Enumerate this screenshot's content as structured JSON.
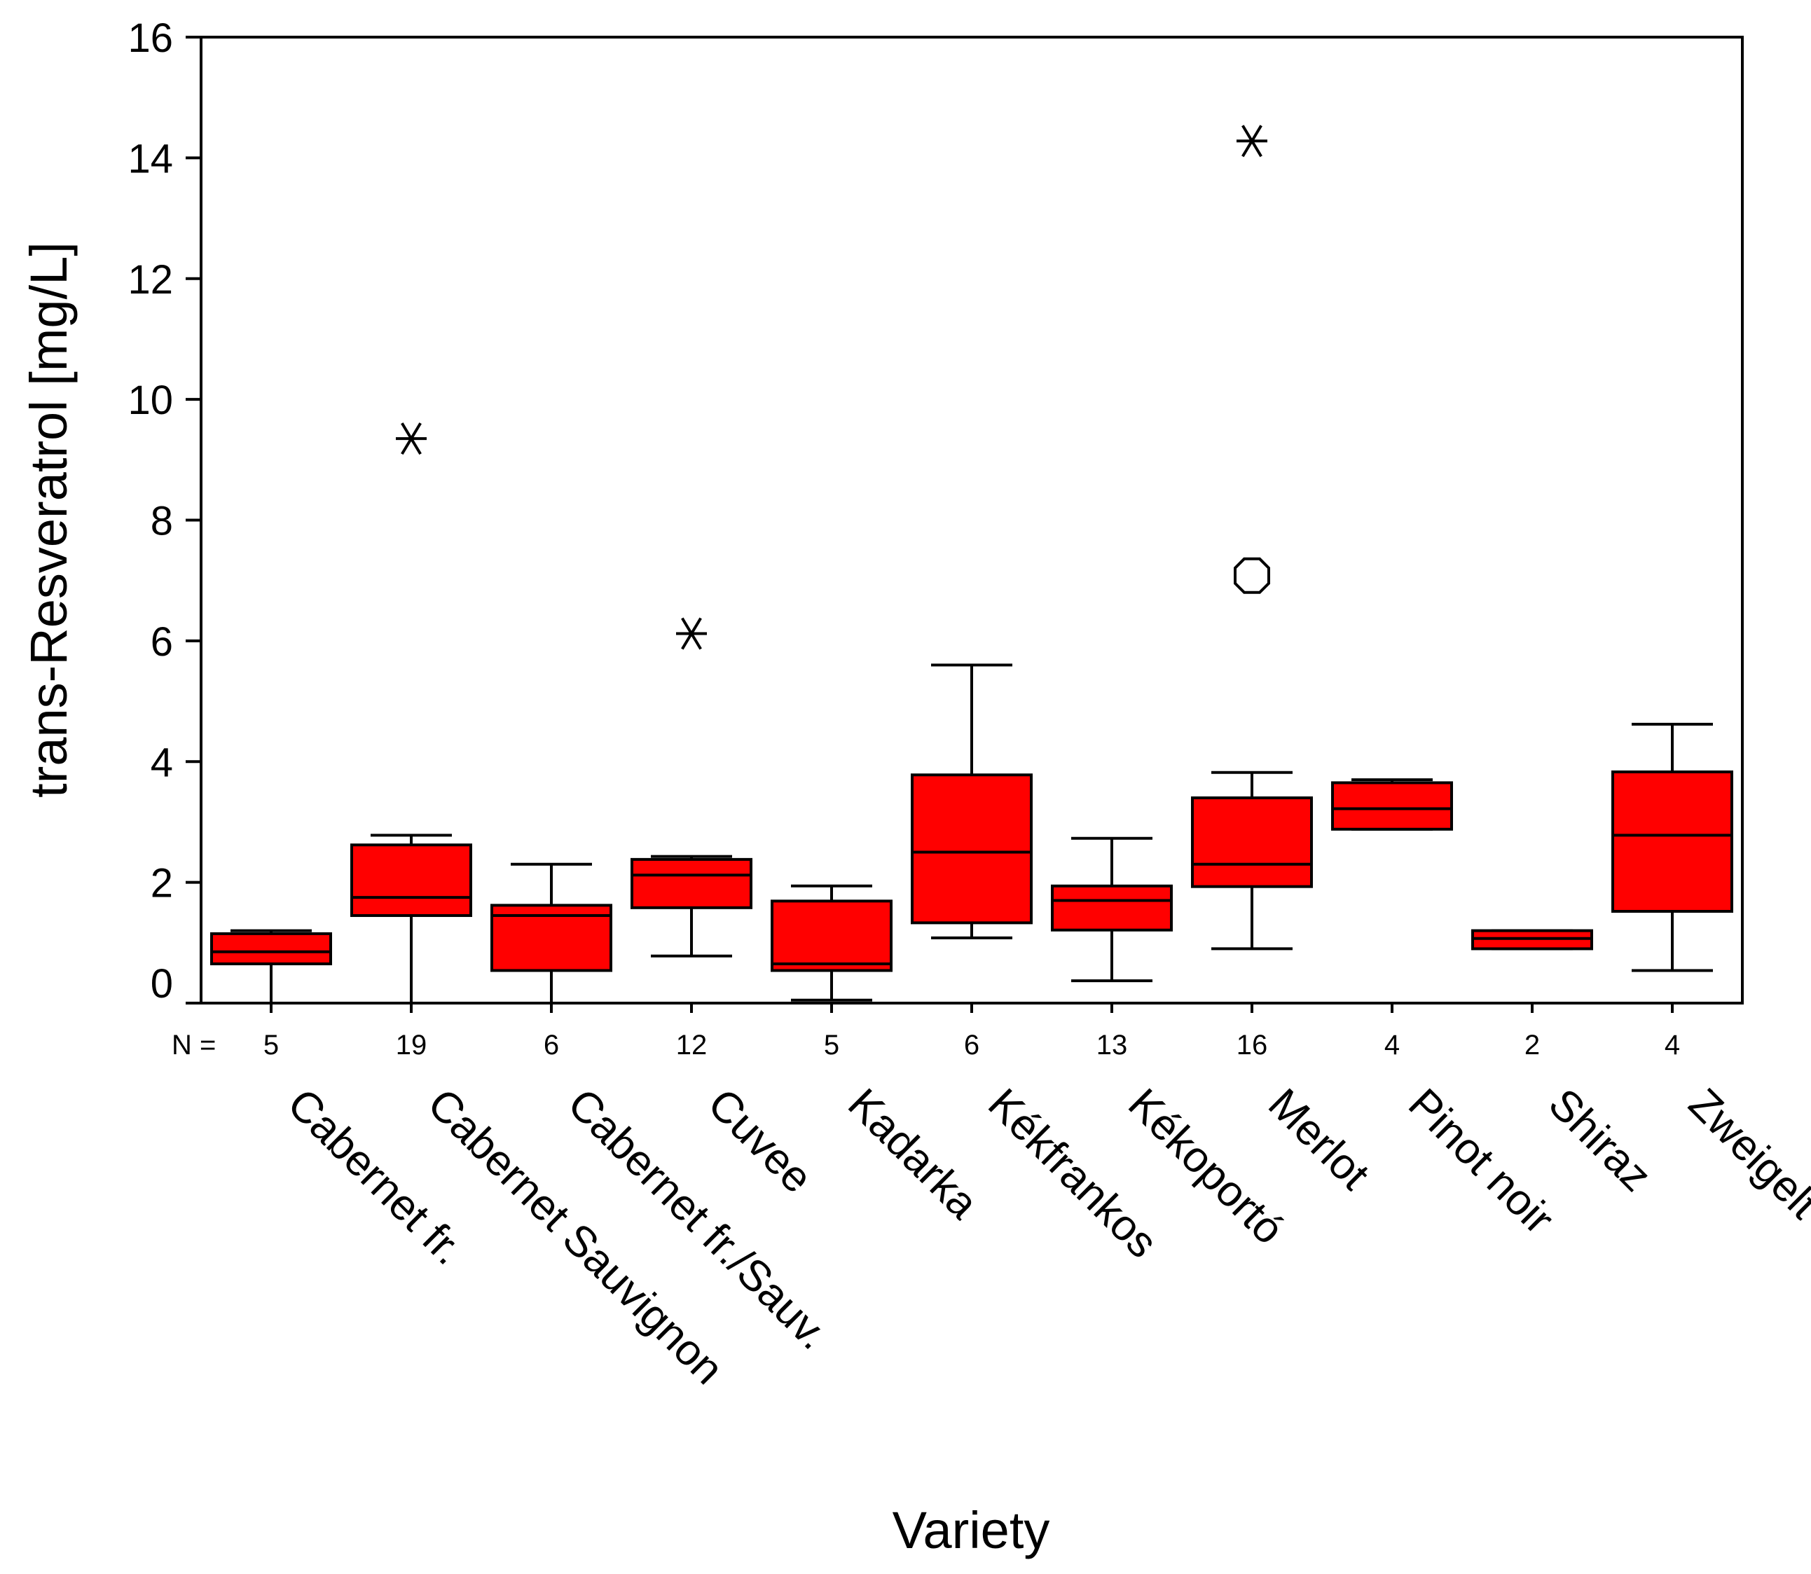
{
  "chart_data": {
    "type": "boxplot",
    "title": "",
    "xlabel": "Variety",
    "ylabel": "trans-Resveratrol [mg/L]",
    "ylim": [
      0,
      16
    ],
    "yticks": [
      0,
      2,
      4,
      6,
      8,
      10,
      12,
      14,
      16
    ],
    "yticklabels": [
      "0",
      "2",
      "4",
      "6",
      "8",
      "10",
      "12",
      "14",
      "16"
    ],
    "n_label": "N =",
    "box_color": "#ff0000",
    "grid": false,
    "legend": "none",
    "categories": [
      "Cabernet fr.",
      "Cabernet Sauvignon",
      "Cabernet fr./Sauv.",
      "Cuvee",
      "Kadarka",
      "Kékfrankos",
      "Kékoportó",
      "Merlot",
      "Pinot noir",
      "Shiraz",
      "Zweigelt"
    ],
    "n": [
      5,
      19,
      6,
      12,
      5,
      6,
      13,
      16,
      4,
      2,
      4
    ],
    "n_labels": [
      "5",
      "19",
      "6",
      "12",
      "5",
      "6",
      "13",
      "16",
      "4",
      "2",
      "4"
    ],
    "whisker_low": [
      0.0,
      0.0,
      0.0,
      0.78,
      0.05,
      1.08,
      0.37,
      0.9,
      2.88,
      0.9,
      0.54
    ],
    "q1": [
      0.65,
      1.45,
      0.54,
      1.58,
      0.54,
      1.33,
      1.21,
      1.93,
      2.88,
      0.9,
      1.52
    ],
    "median": [
      0.85,
      1.75,
      1.45,
      2.12,
      0.65,
      2.5,
      1.7,
      2.3,
      3.22,
      1.07,
      2.78
    ],
    "q3": [
      1.15,
      2.62,
      1.62,
      2.38,
      1.69,
      3.78,
      1.94,
      3.4,
      3.65,
      1.2,
      3.83
    ],
    "whisker_high": [
      1.2,
      2.78,
      2.3,
      2.43,
      1.94,
      5.6,
      2.73,
      3.82,
      3.7,
      1.2,
      4.62
    ],
    "outliers": [
      {
        "category": "Cabernet Sauvignon",
        "value": 9.35,
        "marker": "asterisk"
      },
      {
        "category": "Cuvee",
        "value": 6.12,
        "marker": "asterisk"
      },
      {
        "category": "Merlot",
        "value": 14.28,
        "marker": "asterisk"
      },
      {
        "category": "Merlot",
        "value": 7.08,
        "marker": "circle"
      }
    ]
  }
}
